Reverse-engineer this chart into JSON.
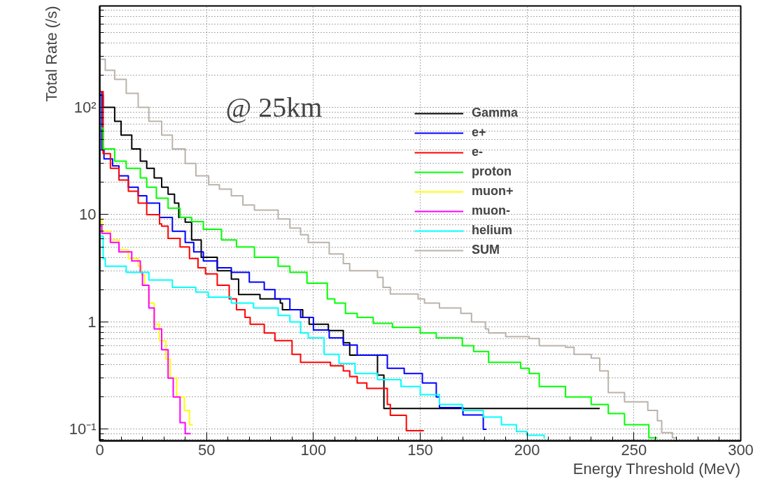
{
  "chart_data": {
    "type": "step",
    "xlabel": "Energy Threshold (MeV)",
    "ylabel": "Total Rate (/s)",
    "annotations": [
      "@ 25km"
    ],
    "log": true,
    "grid": true,
    "legend": "top right",
    "line_style": "solid",
    "marker": "none",
    "xlim": [
      0,
      300
    ],
    "xticks": [
      0,
      50,
      100,
      150,
      200,
      250,
      300
    ],
    "ylim": [
      0.078,
      880
    ],
    "yticks": [
      {
        "value": 0.1,
        "label": "10⁻¹"
      },
      1,
      10,
      {
        "value": 100,
        "label": "10²"
      }
    ],
    "series": [
      {
        "name": "Gamma",
        "color": "#000000",
        "x": [
          0,
          1.6,
          7,
          10,
          15,
          19,
          22,
          25.5,
          29,
          32,
          35,
          37,
          40,
          43,
          47.5,
          55,
          61.6,
          65,
          75,
          84.5,
          85.5,
          95,
          98,
          107,
          114,
          117,
          130,
          133,
          234
        ],
        "values": [
          130,
          100,
          74,
          55,
          41,
          31.5,
          27,
          22,
          18,
          15.5,
          12.8,
          9.4,
          8.5,
          5.8,
          4,
          3,
          2.5,
          1.8,
          1.64,
          1.5,
          1.3,
          1.1,
          0.95,
          0.83,
          0.64,
          0.49,
          0.32,
          0.156,
          0.156
        ]
      },
      {
        "name": "e+",
        "color": "#0000ff",
        "x": [
          0,
          1,
          2,
          6,
          9,
          13.4,
          18,
          22,
          28,
          34,
          40,
          44,
          48.5,
          55,
          61.6,
          70,
          77,
          82,
          89,
          94,
          100,
          107.4,
          114,
          120.5,
          134.6,
          142.5,
          151,
          157.5,
          159,
          170,
          179.5,
          181
        ],
        "values": [
          140,
          40,
          33,
          28.5,
          23,
          18,
          15,
          12.8,
          9.4,
          7,
          5.5,
          4.5,
          3.7,
          3.2,
          2.9,
          2.35,
          2,
          1.64,
          1.3,
          1.1,
          0.84,
          0.71,
          0.61,
          0.49,
          0.37,
          0.33,
          0.27,
          0.2,
          0.159,
          0.136,
          0.1,
          0.1
        ]
      },
      {
        "name": "e-",
        "color": "#ff0000",
        "x": [
          0,
          1.6,
          5,
          9,
          13.4,
          18,
          22,
          28,
          29,
          32,
          37.6,
          42,
          46,
          49.5,
          55,
          60.6,
          64,
          68,
          70.4,
          77,
          82,
          90,
          94,
          108,
          114,
          117,
          120.5,
          125,
          134.6,
          136,
          143.5,
          151.7
        ],
        "values": [
          140,
          37,
          27,
          21,
          16.5,
          12.8,
          10,
          8.2,
          7.8,
          6,
          5,
          3.9,
          3.2,
          2.8,
          2.2,
          1.64,
          1.3,
          1.1,
          0.95,
          0.79,
          0.67,
          0.5,
          0.42,
          0.39,
          0.35,
          0.31,
          0.27,
          0.24,
          0.17,
          0.135,
          0.097,
          0.097
        ]
      },
      {
        "name": "proton",
        "color": "#00ff00",
        "x": [
          0,
          1.6,
          7,
          12.4,
          19,
          22,
          26.5,
          32,
          37.6,
          43,
          48.5,
          57,
          64,
          72.4,
          83.5,
          89,
          97,
          106.5,
          110,
          115,
          120.5,
          128,
          137,
          150,
          157.5,
          169.7,
          175,
          182,
          197,
          201,
          205.7,
          218,
          230,
          238,
          245.6,
          257,
          261
        ],
        "values": [
          64,
          41,
          31.5,
          27,
          22,
          18,
          14.2,
          11.5,
          9.4,
          8.6,
          7.3,
          5.8,
          5,
          4,
          3.3,
          2.9,
          2.3,
          1.64,
          1.5,
          1.2,
          1.1,
          0.97,
          0.89,
          0.79,
          0.71,
          0.6,
          0.53,
          0.42,
          0.37,
          0.33,
          0.25,
          0.2,
          0.17,
          0.14,
          0.11,
          0.083,
          0.083
        ]
      },
      {
        "name": "muon+",
        "color": "#ffff00",
        "x": [
          0,
          1,
          5,
          9,
          13.4,
          18,
          19.6,
          21,
          23,
          25.5,
          28,
          31,
          33,
          36,
          39.6,
          42,
          43.6
        ],
        "values": [
          9,
          7,
          5.8,
          4.7,
          3.9,
          3.3,
          2.75,
          2.2,
          1.5,
          0.95,
          0.67,
          0.45,
          0.3,
          0.2,
          0.15,
          0.11,
          0.11
        ]
      },
      {
        "name": "muon-",
        "color": "#ff00ff",
        "x": [
          0,
          1,
          5,
          9,
          15,
          19,
          20,
          23,
          25.5,
          29,
          32,
          34.4,
          37.6,
          40,
          42.6
        ],
        "values": [
          7.8,
          6.7,
          5.5,
          4.5,
          3.7,
          2.9,
          2.2,
          1.35,
          0.86,
          0.55,
          0.3,
          0.2,
          0.115,
          0.091,
          0.091
        ]
      },
      {
        "name": "helium",
        "color": "#00ffff",
        "x": [
          0,
          1.6,
          2.6,
          12.4,
          23,
          34,
          45,
          50.8,
          61.6,
          72,
          83.5,
          89,
          94,
          97.6,
          105,
          112,
          119.5,
          130,
          141,
          150,
          159,
          169.7,
          179.5,
          188,
          195,
          200,
          208
        ],
        "values": [
          6.3,
          3.9,
          3.3,
          2.9,
          2.46,
          2.1,
          1.9,
          1.7,
          1.5,
          1.35,
          1.15,
          1,
          0.79,
          0.71,
          0.5,
          0.41,
          0.33,
          0.29,
          0.25,
          0.21,
          0.17,
          0.15,
          0.13,
          0.11,
          0.095,
          0.088,
          0.082
        ]
      },
      {
        "name": "SUM",
        "color": "#bbb3aa",
        "x": [
          0,
          2.6,
          7,
          12.4,
          18,
          23,
          29,
          34,
          40,
          45,
          51,
          56,
          61.6,
          67,
          72.4,
          83.5,
          89,
          94,
          97.6,
          107.4,
          114,
          117,
          130,
          132.6,
          136,
          149,
          152,
          159,
          169,
          174,
          180.5,
          182,
          190,
          201,
          205.7,
          218,
          222,
          230,
          234,
          238,
          245.6,
          256.5,
          261,
          263,
          268,
          270
        ],
        "values": [
          280,
          221,
          182,
          135,
          100,
          74,
          55,
          41,
          30,
          23,
          19,
          17.3,
          15,
          12.3,
          11,
          9.1,
          7.5,
          6.5,
          5.5,
          4.3,
          3.5,
          3,
          2.6,
          2.1,
          1.82,
          1.64,
          1.5,
          1.35,
          1.2,
          1,
          0.86,
          0.79,
          0.73,
          0.7,
          0.6,
          0.58,
          0.5,
          0.46,
          0.35,
          0.22,
          0.18,
          0.15,
          0.12,
          0.093,
          0.083,
          0.083
        ]
      }
    ]
  }
}
